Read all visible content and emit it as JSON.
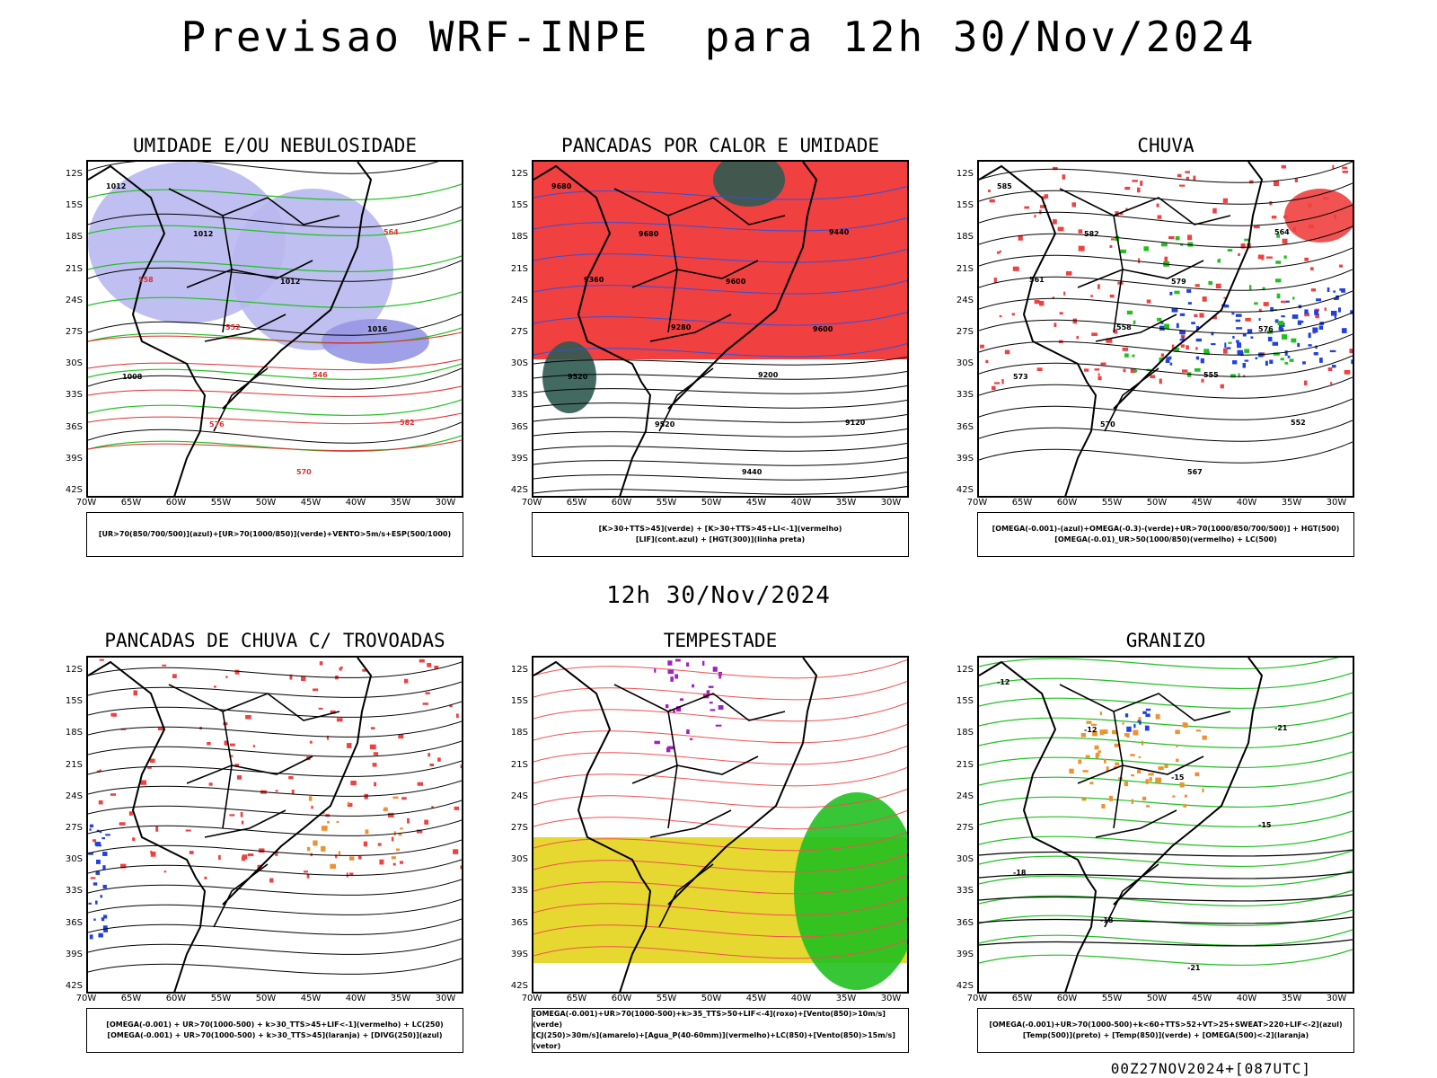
{
  "title": "Previsao WRF-INPE  para 12h 30/Nov/2024",
  "subtitle": "12h 30/Nov/2024",
  "footer": "00Z27NOV2024+[087UTC]",
  "axes": {
    "lat_ticks": [
      "12S",
      "15S",
      "18S",
      "21S",
      "24S",
      "27S",
      "30S",
      "33S",
      "36S",
      "39S",
      "42S"
    ],
    "lon_ticks": [
      "70W",
      "65W",
      "60W",
      "55W",
      "50W",
      "45W",
      "40W",
      "35W",
      "30W"
    ]
  },
  "chart_data": [
    {
      "type": "heatmap",
      "title": "UMIDADE E/OU NEBULOSIDADE",
      "legend_lines": [
        "[UR>70(850/700/500)](azul)+[UR>70(1000/850)](verde)+VENTO>5m/s+ESP(500/1000)"
      ],
      "x_range": [
        -70,
        -28
      ],
      "y_range": [
        -42,
        -10
      ],
      "fill_colors": [
        "#b8b8f0",
        "#9696e6"
      ],
      "contour_labels": [
        "1012",
        "1012",
        "1012",
        "1016",
        "1008",
        "576",
        "570",
        "564",
        "558",
        "552",
        "546",
        "582"
      ]
    },
    {
      "type": "heatmap",
      "title": "PANCADAS POR CALOR E UMIDADE",
      "legend_lines": [
        "[K>30+TTS>45](verde) + [K>30+TTS>45+LI<-1](vermelho)",
        "[LIF](cont.azul) + [HGT(300)](linha preta)"
      ],
      "x_range": [
        -70,
        -28
      ],
      "y_range": [
        -42,
        -10
      ],
      "fill_colors": [
        "#f04040",
        "#2f5a50"
      ],
      "contour_labels": [
        "9680",
        "9680",
        "9600",
        "9600",
        "9520",
        "9520",
        "9440",
        "9440",
        "9360",
        "9280",
        "9200",
        "9120"
      ]
    },
    {
      "type": "heatmap",
      "title": "CHUVA",
      "legend_lines": [
        "[OMEGA(-0.001)-(azul)+OMEGA(-0.3)-(verde)+UR>70(1000/850/700/500)] + HGT(500)",
        "[OMEGA(-0.01)_UR>50(1000/850)(vermelho) + LC(500)"
      ],
      "x_range": [
        -70,
        -28
      ],
      "y_range": [
        -42,
        -10
      ],
      "fill_colors": [
        "#f04040",
        "#2040e0",
        "#20c020"
      ],
      "contour_labels": [
        "585",
        "582",
        "579",
        "576",
        "573",
        "570",
        "567",
        "564",
        "561",
        "558",
        "555",
        "552"
      ]
    },
    {
      "type": "heatmap",
      "title": "PANCADAS DE CHUVA C/ TROVOADAS",
      "legend_lines": [
        "[OMEGA(-0.001) + UR>70(1000-500) + k>30_TTS>45+LIF<-1](vermelho) + LC(250)",
        "[OMEGA(-0.001) + UR>70(1000-500) + k>30_TTS>45](laranja) + [DIVG(250)](azul)"
      ],
      "x_range": [
        -70,
        -28
      ],
      "y_range": [
        -42,
        -10
      ],
      "fill_colors": [
        "#f04040",
        "#f09030",
        "#2040e0"
      ],
      "contour_labels": []
    },
    {
      "type": "heatmap",
      "title": "TEMPESTADE",
      "legend_lines": [
        "[OMEGA(-0.001)+UR>70(1000-500)+k>35_TTS>50+LIF<-4](roxo)+[Vento(850)>10m/s](verde)",
        "[CJ(250)>30m/s](amarelo)+[Agua_P(40-60mm)](vermelho)+LC(850)+[Vento(850)>15m/s](vetor)"
      ],
      "x_range": [
        -70,
        -28
      ],
      "y_range": [
        -42,
        -10
      ],
      "fill_colors": [
        "#e6d830",
        "#20c020",
        "#a020c0",
        "#f04040"
      ],
      "contour_labels": []
    },
    {
      "type": "heatmap",
      "title": "GRANIZO",
      "legend_lines": [
        "[OMEGA(-0.001)+UR>70(1000-500)+k<60+TTS>52+VT>25+SWEAT>220+LIF<-2](azul)",
        "[Temp(500)](preto) + [Temp(850)](verde) + [OMEGA(500)<-2](laranja)"
      ],
      "x_range": [
        -70,
        -28
      ],
      "y_range": [
        -42,
        -10
      ],
      "fill_colors": [
        "#20c020",
        "#f09030",
        "#2040e0"
      ],
      "contour_labels": [
        "-12",
        "-12",
        "-15",
        "-15",
        "-18",
        "-18",
        "-21",
        "-21"
      ]
    }
  ]
}
